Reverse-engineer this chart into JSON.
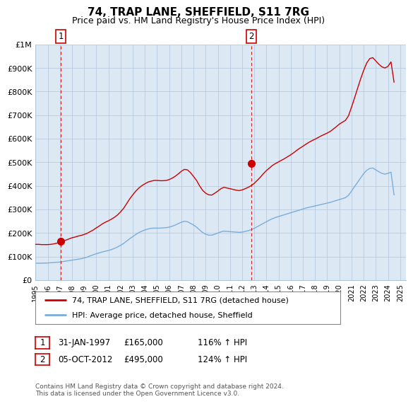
{
  "title": "74, TRAP LANE, SHEFFIELD, S11 7RG",
  "subtitle": "Price paid vs. HM Land Registry's House Price Index (HPI)",
  "footer": "Contains HM Land Registry data © Crown copyright and database right 2024.\nThis data is licensed under the Open Government Licence v3.0.",
  "legend_line1": "74, TRAP LANE, SHEFFIELD, S11 7RG (detached house)",
  "legend_line2": "HPI: Average price, detached house, Sheffield",
  "annotation1": {
    "label": "1",
    "date": "31-JAN-1997",
    "price": "£165,000",
    "hpi": "116% ↑ HPI"
  },
  "annotation2": {
    "label": "2",
    "date": "05-OCT-2012",
    "price": "£495,000",
    "hpi": "124% ↑ HPI"
  },
  "xlim": [
    1995.0,
    2025.5
  ],
  "ylim": [
    0,
    1000000
  ],
  "yticks": [
    0,
    100000,
    200000,
    300000,
    400000,
    500000,
    600000,
    700000,
    800000,
    900000,
    1000000
  ],
  "ytick_labels": [
    "£0",
    "£100K",
    "£200K",
    "£300K",
    "£400K",
    "£500K",
    "£600K",
    "£700K",
    "£800K",
    "£900K",
    "£1M"
  ],
  "xticks": [
    1995,
    1996,
    1997,
    1998,
    1999,
    2000,
    2001,
    2002,
    2003,
    2004,
    2005,
    2006,
    2007,
    2008,
    2009,
    2010,
    2011,
    2012,
    2013,
    2014,
    2015,
    2016,
    2017,
    2018,
    2019,
    2020,
    2021,
    2022,
    2023,
    2024,
    2025
  ],
  "house_color": "#cc0000",
  "hpi_color": "#7aaddb",
  "vline_color": "#cc0000",
  "dot_color": "#cc0000",
  "background_color": "#dce9f5",
  "plot_bg": "#ffffff",
  "grid_color": "#b0c4d8",
  "sale1_x": 1997.08,
  "sale1_y": 165000,
  "sale2_x": 2012.75,
  "sale2_y": 495000,
  "hpi_data_x": [
    1995.0,
    1995.25,
    1995.5,
    1995.75,
    1996.0,
    1996.25,
    1996.5,
    1996.75,
    1997.0,
    1997.25,
    1997.5,
    1997.75,
    1998.0,
    1998.25,
    1998.5,
    1998.75,
    1999.0,
    1999.25,
    1999.5,
    1999.75,
    2000.0,
    2000.25,
    2000.5,
    2000.75,
    2001.0,
    2001.25,
    2001.5,
    2001.75,
    2002.0,
    2002.25,
    2002.5,
    2002.75,
    2003.0,
    2003.25,
    2003.5,
    2003.75,
    2004.0,
    2004.25,
    2004.5,
    2004.75,
    2005.0,
    2005.25,
    2005.5,
    2005.75,
    2006.0,
    2006.25,
    2006.5,
    2006.75,
    2007.0,
    2007.25,
    2007.5,
    2007.75,
    2008.0,
    2008.25,
    2008.5,
    2008.75,
    2009.0,
    2009.25,
    2009.5,
    2009.75,
    2010.0,
    2010.25,
    2010.5,
    2010.75,
    2011.0,
    2011.25,
    2011.5,
    2011.75,
    2012.0,
    2012.25,
    2012.5,
    2012.75,
    2013.0,
    2013.25,
    2013.5,
    2013.75,
    2014.0,
    2014.25,
    2014.5,
    2014.75,
    2015.0,
    2015.25,
    2015.5,
    2015.75,
    2016.0,
    2016.25,
    2016.5,
    2016.75,
    2017.0,
    2017.25,
    2017.5,
    2017.75,
    2018.0,
    2018.25,
    2018.5,
    2018.75,
    2019.0,
    2019.25,
    2019.5,
    2019.75,
    2020.0,
    2020.25,
    2020.5,
    2020.75,
    2021.0,
    2021.25,
    2021.5,
    2021.75,
    2022.0,
    2022.25,
    2022.5,
    2022.75,
    2023.0,
    2023.25,
    2023.5,
    2023.75,
    2024.0,
    2024.25,
    2024.5
  ],
  "hpi_data_y": [
    72000,
    72000,
    72000,
    72500,
    73000,
    74000,
    75000,
    76000,
    77000,
    79000,
    81000,
    83000,
    85000,
    87000,
    89000,
    91000,
    94000,
    98000,
    103000,
    108000,
    112000,
    116000,
    120000,
    123000,
    126000,
    130000,
    135000,
    141000,
    148000,
    156000,
    166000,
    176000,
    185000,
    194000,
    202000,
    208000,
    213000,
    217000,
    220000,
    221000,
    221000,
    221000,
    222000,
    223000,
    225000,
    229000,
    234000,
    240000,
    246000,
    250000,
    248000,
    241000,
    234000,
    225000,
    213000,
    202000,
    195000,
    191000,
    191000,
    195000,
    200000,
    205000,
    208000,
    207000,
    206000,
    205000,
    204000,
    203000,
    204000,
    207000,
    210000,
    214000,
    220000,
    227000,
    234000,
    241000,
    248000,
    255000,
    261000,
    266000,
    270000,
    274000,
    278000,
    282000,
    286000,
    290000,
    294000,
    298000,
    302000,
    306000,
    309000,
    312000,
    315000,
    318000,
    321000,
    324000,
    327000,
    330000,
    334000,
    338000,
    342000,
    346000,
    350000,
    360000,
    378000,
    397000,
    415000,
    434000,
    452000,
    466000,
    474000,
    476000,
    468000,
    460000,
    453000,
    450000,
    453000,
    458000,
    362000
  ],
  "house_data_x": [
    1995.0,
    1995.25,
    1995.5,
    1995.75,
    1996.0,
    1996.25,
    1996.5,
    1996.75,
    1997.0,
    1997.25,
    1997.5,
    1997.75,
    1998.0,
    1998.25,
    1998.5,
    1998.75,
    1999.0,
    1999.25,
    1999.5,
    1999.75,
    2000.0,
    2000.25,
    2000.5,
    2000.75,
    2001.0,
    2001.25,
    2001.5,
    2001.75,
    2002.0,
    2002.25,
    2002.5,
    2002.75,
    2003.0,
    2003.25,
    2003.5,
    2003.75,
    2004.0,
    2004.25,
    2004.5,
    2004.75,
    2005.0,
    2005.25,
    2005.5,
    2005.75,
    2006.0,
    2006.25,
    2006.5,
    2006.75,
    2007.0,
    2007.25,
    2007.5,
    2007.75,
    2008.0,
    2008.25,
    2008.5,
    2008.75,
    2009.0,
    2009.25,
    2009.5,
    2009.75,
    2010.0,
    2010.25,
    2010.5,
    2010.75,
    2011.0,
    2011.25,
    2011.5,
    2011.75,
    2012.0,
    2012.25,
    2012.5,
    2012.75,
    2013.0,
    2013.25,
    2013.5,
    2013.75,
    2014.0,
    2014.25,
    2014.5,
    2014.75,
    2015.0,
    2015.25,
    2015.5,
    2015.75,
    2016.0,
    2016.25,
    2016.5,
    2016.75,
    2017.0,
    2017.25,
    2017.5,
    2017.75,
    2018.0,
    2018.25,
    2018.5,
    2018.75,
    2019.0,
    2019.25,
    2019.5,
    2019.75,
    2020.0,
    2020.25,
    2020.5,
    2020.75,
    2021.0,
    2021.25,
    2021.5,
    2021.75,
    2022.0,
    2022.25,
    2022.5,
    2022.75,
    2023.0,
    2023.25,
    2023.5,
    2023.75,
    2024.0,
    2024.25,
    2024.5
  ],
  "house_data_y": [
    152000,
    152000,
    151000,
    151000,
    151000,
    152000,
    154000,
    157000,
    161000,
    165000,
    170000,
    175000,
    180000,
    183000,
    187000,
    190000,
    194000,
    199000,
    206000,
    213000,
    222000,
    230000,
    239000,
    246000,
    252000,
    259000,
    267000,
    277000,
    290000,
    305000,
    325000,
    345000,
    362000,
    378000,
    391000,
    401000,
    409000,
    416000,
    420000,
    423000,
    423000,
    422000,
    422000,
    423000,
    427000,
    433000,
    441000,
    451000,
    462000,
    470000,
    468000,
    456000,
    440000,
    423000,
    400000,
    381000,
    369000,
    362000,
    361000,
    369000,
    378000,
    388000,
    394000,
    391000,
    388000,
    385000,
    382000,
    380000,
    383000,
    388000,
    394000,
    401000,
    411000,
    424000,
    437000,
    452000,
    465000,
    476000,
    487000,
    495000,
    502000,
    509000,
    516000,
    524000,
    532000,
    541000,
    551000,
    560000,
    568000,
    577000,
    585000,
    592000,
    598000,
    605000,
    612000,
    618000,
    624000,
    631000,
    641000,
    651000,
    662000,
    670000,
    678000,
    697000,
    734000,
    773000,
    814000,
    854000,
    890000,
    921000,
    940000,
    944000,
    930000,
    916000,
    905000,
    900000,
    907000,
    926000,
    840000
  ]
}
